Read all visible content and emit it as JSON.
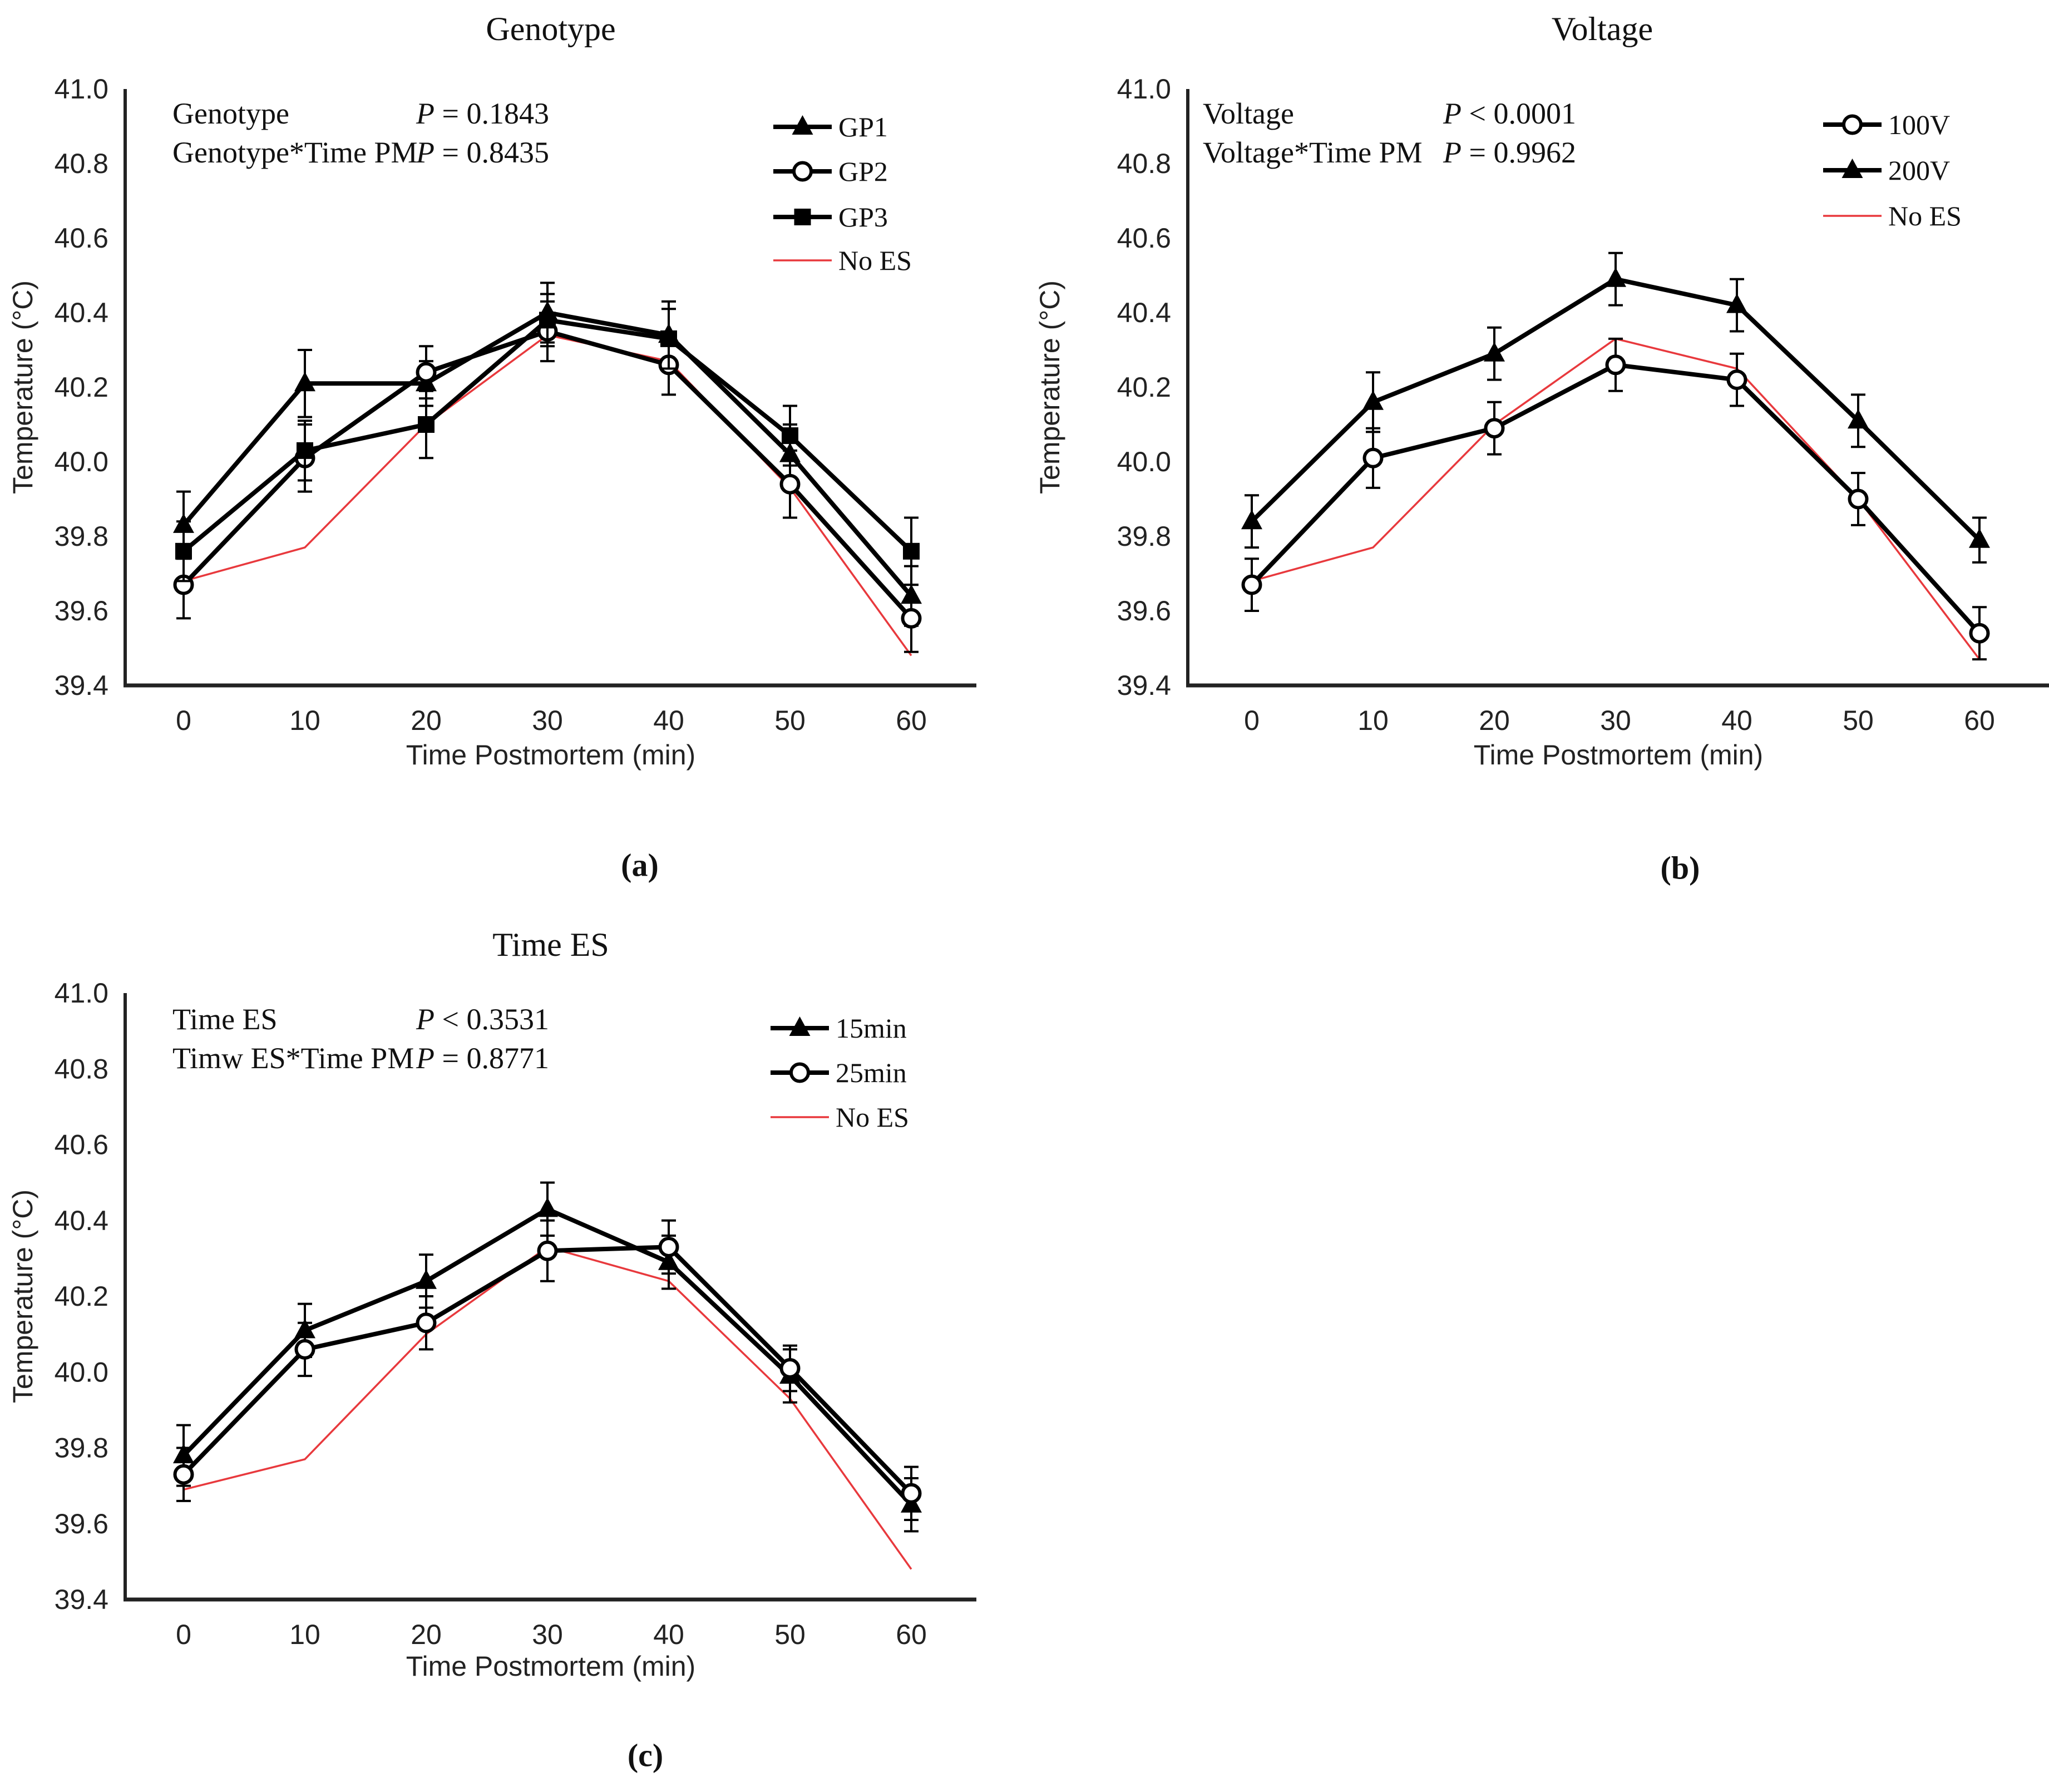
{
  "figure": {
    "background": "#ffffff",
    "captions": [
      "(a)",
      "(b)",
      "(c)"
    ],
    "series_black_color": "#000000",
    "no_es_red_color": "#e8393d"
  },
  "chart_data": [
    {
      "id": "genotype",
      "type": "line",
      "title": "Genotype",
      "xlabel": "Time Postmortem (min)",
      "ylabel": "Temperature (°C)",
      "x": [
        0,
        10,
        20,
        30,
        40,
        50,
        60
      ],
      "ylim": [
        39.4,
        41.0
      ],
      "yticks": [
        "41.0",
        "40.8",
        "40.6",
        "40.4",
        "40.2",
        "40.0",
        "39.8",
        "39.6",
        "39.4"
      ],
      "grid": false,
      "legend_position": "top-right-inside",
      "annotations": [
        {
          "label": "Genotype",
          "p": "P = 0.1843"
        },
        {
          "label": "Genotype*Time PM",
          "p": "P = 0.8435"
        }
      ],
      "series": [
        {
          "name": "GP1",
          "marker": "triangle-filled",
          "line": "thick",
          "color": "#000000",
          "values": [
            39.83,
            40.21,
            40.21,
            40.4,
            40.34,
            40.02,
            39.64
          ],
          "errors": [
            0.09,
            0.09,
            0.06,
            0.08,
            0.09,
            0.08,
            0.08
          ]
        },
        {
          "name": "GP2",
          "marker": "circle-open",
          "line": "thick",
          "color": "#000000",
          "values": [
            39.67,
            40.01,
            40.24,
            40.35,
            40.26,
            39.94,
            39.58
          ],
          "errors": [
            0.09,
            0.09,
            0.07,
            0.08,
            0.08,
            0.09,
            0.09
          ]
        },
        {
          "name": "GP3",
          "marker": "square-filled",
          "line": "thick",
          "color": "#000000",
          "values": [
            39.76,
            40.03,
            40.1,
            40.38,
            40.33,
            40.07,
            39.76
          ],
          "errors": [
            0.08,
            0.08,
            0.09,
            0.07,
            0.08,
            0.08,
            0.09
          ]
        },
        {
          "name": "No ES",
          "marker": "none",
          "line": "thin",
          "color": "#e8393d",
          "values": [
            39.68,
            39.77,
            40.1,
            40.34,
            40.27,
            39.93,
            39.48
          ]
        }
      ]
    },
    {
      "id": "voltage",
      "type": "line",
      "title": "Voltage",
      "xlabel": "Time Postmortem (min)",
      "ylabel": "Temperature (°C)",
      "x": [
        0,
        10,
        20,
        30,
        40,
        50,
        60
      ],
      "ylim": [
        39.4,
        41.0
      ],
      "yticks": [
        "41.0",
        "40.8",
        "40.6",
        "40.4",
        "40.2",
        "40.0",
        "39.8",
        "39.6",
        "39.4"
      ],
      "grid": false,
      "legend_position": "top-right-inside",
      "annotations": [
        {
          "label": "Voltage",
          "p": "P < 0.0001"
        },
        {
          "label": "Voltage*Time PM",
          "p": "P = 0.9962"
        }
      ],
      "series": [
        {
          "name": "100V",
          "marker": "circle-open",
          "line": "thick",
          "color": "#000000",
          "values": [
            39.67,
            40.01,
            40.09,
            40.26,
            40.22,
            39.9,
            39.54
          ],
          "errors": [
            0.07,
            0.08,
            0.07,
            0.07,
            0.07,
            0.07,
            0.07
          ]
        },
        {
          "name": "200V",
          "marker": "triangle-filled",
          "line": "thick",
          "color": "#000000",
          "values": [
            39.84,
            40.16,
            40.29,
            40.49,
            40.42,
            40.11,
            39.79
          ],
          "errors": [
            0.07,
            0.08,
            0.07,
            0.07,
            0.07,
            0.07,
            0.06
          ]
        },
        {
          "name": "No ES",
          "marker": "none",
          "line": "thin",
          "color": "#e8393d",
          "values": [
            39.68,
            39.77,
            40.1,
            40.33,
            40.25,
            39.9,
            39.47
          ]
        }
      ]
    },
    {
      "id": "time-es",
      "type": "line",
      "title": "Time ES",
      "xlabel": "Time Postmortem (min)",
      "ylabel": "Temperature (°C)",
      "x": [
        0,
        10,
        20,
        30,
        40,
        50,
        60
      ],
      "ylim": [
        39.4,
        41.0
      ],
      "yticks": [
        "41.0",
        "40.8",
        "40.6",
        "40.4",
        "40.2",
        "40.0",
        "39.8",
        "39.6",
        "39.4"
      ],
      "grid": false,
      "legend_position": "top-right-inside",
      "annotations": [
        {
          "label": "Time ES",
          "p": "P < 0.3531"
        },
        {
          "label": "Timw ES*Time PM",
          "p": "P = 0.8771"
        }
      ],
      "series": [
        {
          "name": "15min",
          "marker": "triangle-filled",
          "line": "thick",
          "color": "#000000",
          "values": [
            39.78,
            40.11,
            40.24,
            40.43,
            40.29,
            39.99,
            39.65
          ],
          "errors": [
            0.08,
            0.07,
            0.07,
            0.07,
            0.07,
            0.07,
            0.07
          ]
        },
        {
          "name": "25min",
          "marker": "circle-open",
          "line": "thick",
          "color": "#000000",
          "values": [
            39.73,
            40.06,
            40.13,
            40.32,
            40.33,
            40.01,
            39.68
          ],
          "errors": [
            0.07,
            0.07,
            0.07,
            0.08,
            0.07,
            0.06,
            0.07
          ]
        },
        {
          "name": "No ES",
          "marker": "none",
          "line": "thin",
          "color": "#e8393d",
          "values": [
            39.69,
            39.77,
            40.1,
            40.33,
            40.24,
            39.93,
            39.48
          ]
        }
      ]
    }
  ]
}
